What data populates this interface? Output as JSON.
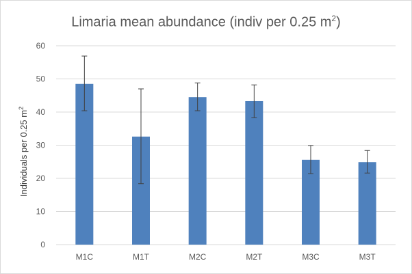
{
  "chart_data": {
    "type": "bar",
    "title": "Limaria mean abundance (indiv per 0.25 m",
    "title_superscript": "2",
    "title_suffix": ")",
    "ylabel": "Individuals per 0.25 m",
    "ylabel_superscript": "2",
    "xlabel": "",
    "categories": [
      "M1C",
      "M1T",
      "M2C",
      "M2T",
      "M3C",
      "M3T"
    ],
    "values": [
      48.5,
      32.6,
      44.5,
      43.3,
      25.6,
      24.9
    ],
    "error_low": [
      40.4,
      18.4,
      40.4,
      38.3,
      21.4,
      21.6
    ],
    "error_high": [
      56.9,
      47.0,
      48.8,
      48.2,
      29.9,
      28.4
    ],
    "ylim": [
      0,
      60
    ],
    "yticks": [
      0,
      10,
      20,
      30,
      40,
      50,
      60
    ],
    "grid": true,
    "legend": "none",
    "bar_color": "#4f81bd",
    "gridline_color": "#d9d9d9",
    "errorbar_color": "#404040"
  }
}
